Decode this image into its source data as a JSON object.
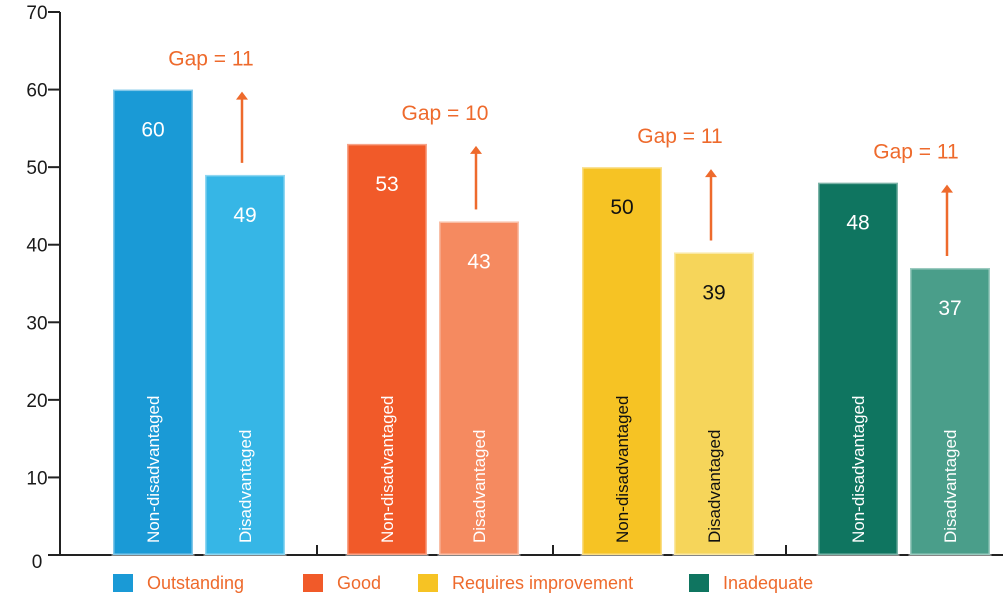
{
  "chart_data": {
    "type": "bar",
    "title": "",
    "xlabel": "",
    "ylabel": "",
    "ylim": [
      0,
      70
    ],
    "yticks": [
      0,
      10,
      20,
      30,
      40,
      50,
      60,
      70
    ],
    "grid": false,
    "legend_position": "bottom",
    "bar_labels": [
      "Non-disadvantaged",
      "Disadvantaged"
    ],
    "groups": [
      {
        "name": "Outstanding",
        "values": [
          60,
          49
        ],
        "gap_label": "Gap = 11",
        "colors": [
          "#1a9ad6",
          "#36b6e6"
        ],
        "text_colors": [
          "#ffffff",
          "#ffffff"
        ]
      },
      {
        "name": "Good",
        "values": [
          53,
          43
        ],
        "gap_label": "Gap = 10",
        "colors": [
          "#f15a29",
          "#f58a60"
        ],
        "text_colors": [
          "#ffffff",
          "#ffffff"
        ]
      },
      {
        "name": "Requires improvement",
        "values": [
          50,
          39
        ],
        "gap_label": "Gap = 11",
        "colors": [
          "#f6c324",
          "#f6d55a"
        ],
        "text_colors": [
          "#111111",
          "#111111"
        ]
      },
      {
        "name": "Inadequate",
        "values": [
          48,
          37
        ],
        "gap_label": "Gap = 11",
        "colors": [
          "#0f7560",
          "#4a9e8a"
        ],
        "text_colors": [
          "#ffffff",
          "#ffffff"
        ]
      }
    ],
    "gap_color": "#ee6a2c"
  }
}
